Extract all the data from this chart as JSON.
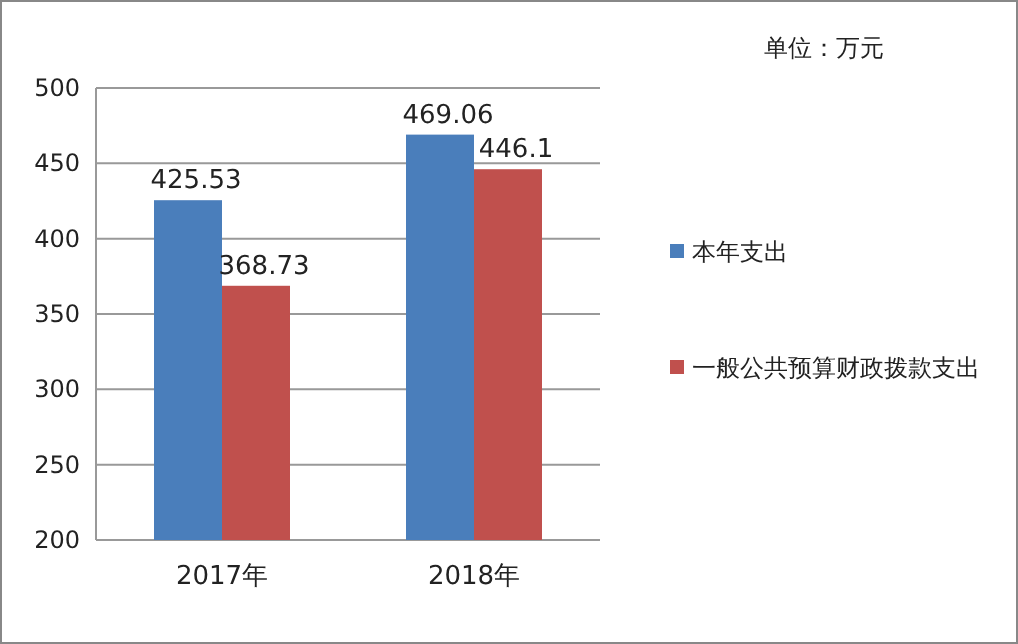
{
  "chart_data": {
    "type": "bar",
    "categories": [
      "2017年",
      "2018年"
    ],
    "series": [
      {
        "name": "本年支出",
        "color": "#4a7ebb",
        "values": [
          425.53,
          469.06
        ]
      },
      {
        "name": "一般公共预算财政拨款支出",
        "color": "#c0504d",
        "values": [
          368.73,
          446.1
        ]
      }
    ],
    "ylim": [
      200,
      500
    ],
    "yticks": [
      200,
      250,
      300,
      350,
      400,
      450,
      500
    ],
    "grid": "y",
    "legend": "right",
    "data_labels": true,
    "annotations": [
      "单位：万元"
    ]
  }
}
